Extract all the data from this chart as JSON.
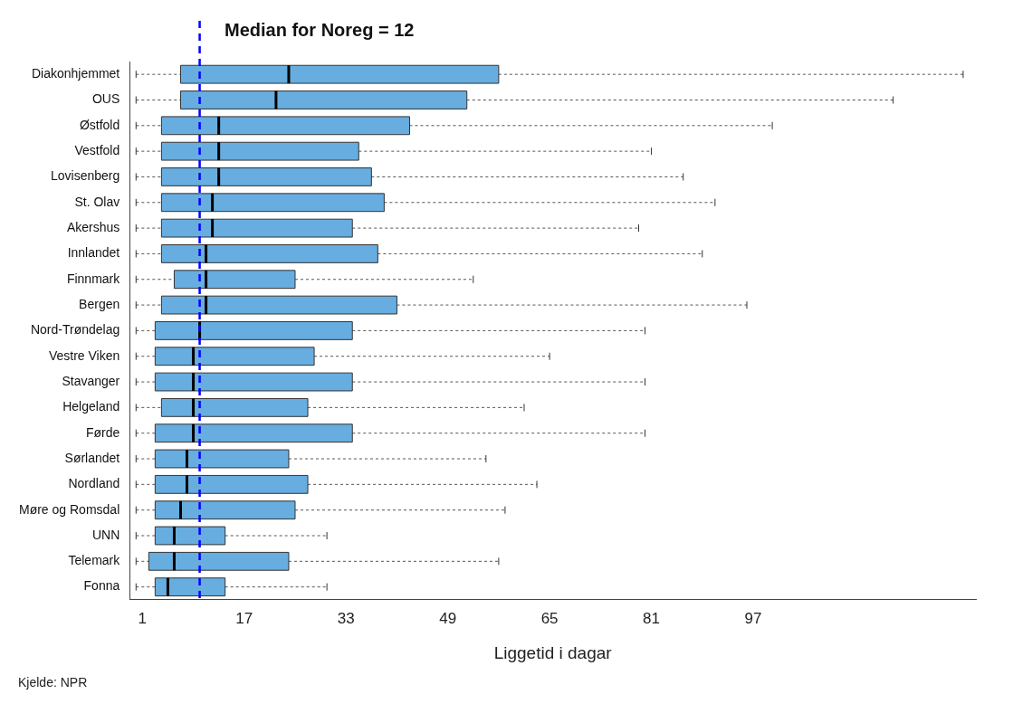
{
  "chart_data": {
    "type": "box",
    "orientation": "horizontal",
    "title": "Median for Noreg = 12",
    "xlabel": "Liggetid i dagar",
    "annotations": [
      "Kjelde: NPR"
    ],
    "categories": [
      "Diakonhjemmet",
      "OUS",
      "Østfold",
      "Vestfold",
      "Lovisenberg",
      "St. Olav",
      "Akershus",
      "Innlandet",
      "Finnmark",
      "Bergen",
      "Nord-Trøndelag",
      "Vestre Viken",
      "Stavanger",
      "Helgeland",
      "Førde",
      "Sørlandet",
      "Nordland",
      "Møre og Romsdal",
      "UNN",
      "Telemark",
      "Fonna"
    ],
    "boxes": [
      {
        "low": 0,
        "q1": 7,
        "median": 24,
        "q3": 57,
        "high": 130
      },
      {
        "low": 0,
        "q1": 7,
        "median": 22,
        "q3": 52,
        "high": 119
      },
      {
        "low": 0,
        "q1": 4,
        "median": 13,
        "q3": 43,
        "high": 100
      },
      {
        "low": 0,
        "q1": 4,
        "median": 13,
        "q3": 35,
        "high": 81
      },
      {
        "low": 0,
        "q1": 4,
        "median": 13,
        "q3": 37,
        "high": 86
      },
      {
        "low": 0,
        "q1": 4,
        "median": 12,
        "q3": 39,
        "high": 91
      },
      {
        "low": 0,
        "q1": 4,
        "median": 12,
        "q3": 34,
        "high": 79
      },
      {
        "low": 0,
        "q1": 4,
        "median": 11,
        "q3": 38,
        "high": 89
      },
      {
        "low": 0,
        "q1": 6,
        "median": 11,
        "q3": 25,
        "high": 53
      },
      {
        "low": 0,
        "q1": 4,
        "median": 11,
        "q3": 41,
        "high": 96
      },
      {
        "low": 0,
        "q1": 3,
        "median": 10,
        "q3": 34,
        "high": 80
      },
      {
        "low": 0,
        "q1": 3,
        "median": 9,
        "q3": 28,
        "high": 65
      },
      {
        "low": 0,
        "q1": 3,
        "median": 9,
        "q3": 34,
        "high": 80
      },
      {
        "low": 0,
        "q1": 4,
        "median": 9,
        "q3": 27,
        "high": 61
      },
      {
        "low": 0,
        "q1": 3,
        "median": 9,
        "q3": 34,
        "high": 80
      },
      {
        "low": 0,
        "q1": 3,
        "median": 8,
        "q3": 24,
        "high": 55
      },
      {
        "low": 0,
        "q1": 3,
        "median": 8,
        "q3": 27,
        "high": 63
      },
      {
        "low": 0,
        "q1": 3,
        "median": 7,
        "q3": 25,
        "high": 58
      },
      {
        "low": 0,
        "q1": 3,
        "median": 6,
        "q3": 14,
        "high": 30
      },
      {
        "low": 0,
        "q1": 2,
        "median": 6,
        "q3": 24,
        "high": 57
      },
      {
        "low": 0,
        "q1": 3,
        "median": 5,
        "q3": 14,
        "high": 30
      }
    ],
    "color": "#67addf",
    "xlim": [
      -1,
      132
    ],
    "xticks": [
      1,
      17,
      33,
      49,
      65,
      81,
      97
    ],
    "ref_lines": [
      {
        "axis": "x",
        "value": 10,
        "color": "#0000ff",
        "line_style": "dashed"
      }
    ],
    "grid": false
  }
}
